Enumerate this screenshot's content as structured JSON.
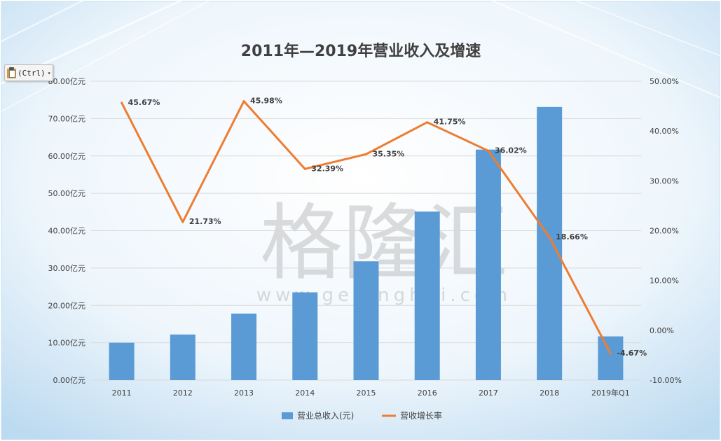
{
  "chart_data": {
    "type": "bar+line",
    "title": "2011年—2019年营业收入及增速",
    "categories": [
      "2011",
      "2012",
      "2013",
      "2014",
      "2015",
      "2016",
      "2017",
      "2018",
      "2019年Q1"
    ],
    "series": [
      {
        "name": "营业总收入(元)",
        "type": "bar",
        "axis": "left",
        "values": [
          10.0,
          12.2,
          17.8,
          23.5,
          31.8,
          45.1,
          61.7,
          73.1,
          11.7
        ]
      },
      {
        "name": "营收增长率",
        "type": "line",
        "axis": "right",
        "values": [
          45.67,
          21.73,
          45.98,
          32.39,
          35.35,
          41.75,
          36.02,
          18.66,
          -4.67
        ],
        "labels": [
          "45.67%",
          "21.73%",
          "45.98%",
          "32.39%",
          "35.35%",
          "41.75%",
          "36.02%",
          "18.66%",
          "-4.67%"
        ]
      }
    ],
    "y_left": {
      "ylim": [
        0,
        80
      ],
      "ticks": [
        "0.00亿元",
        "10.00亿元",
        "20.00亿元",
        "30.00亿元",
        "40.00亿元",
        "50.00亿元",
        "60.00亿元",
        "70.00亿元",
        "80.00亿元"
      ]
    },
    "y_right": {
      "ylim": [
        -10,
        50
      ],
      "ticks": [
        "-10.00%",
        "0.00%",
        "10.00%",
        "20.00%",
        "30.00%",
        "40.00%",
        "50.00%"
      ]
    },
    "grid": true,
    "legend_position": "bottom",
    "colors": {
      "bar": "#5b9bd5",
      "line": "#ed7d31",
      "text": "#404040",
      "grid": "#d9d9d9"
    }
  },
  "watermark": {
    "text": "格隆汇",
    "url": "www.gelonghui.com"
  },
  "paste_options": {
    "label": "(Ctrl)",
    "icon": "clipboard-icon"
  }
}
